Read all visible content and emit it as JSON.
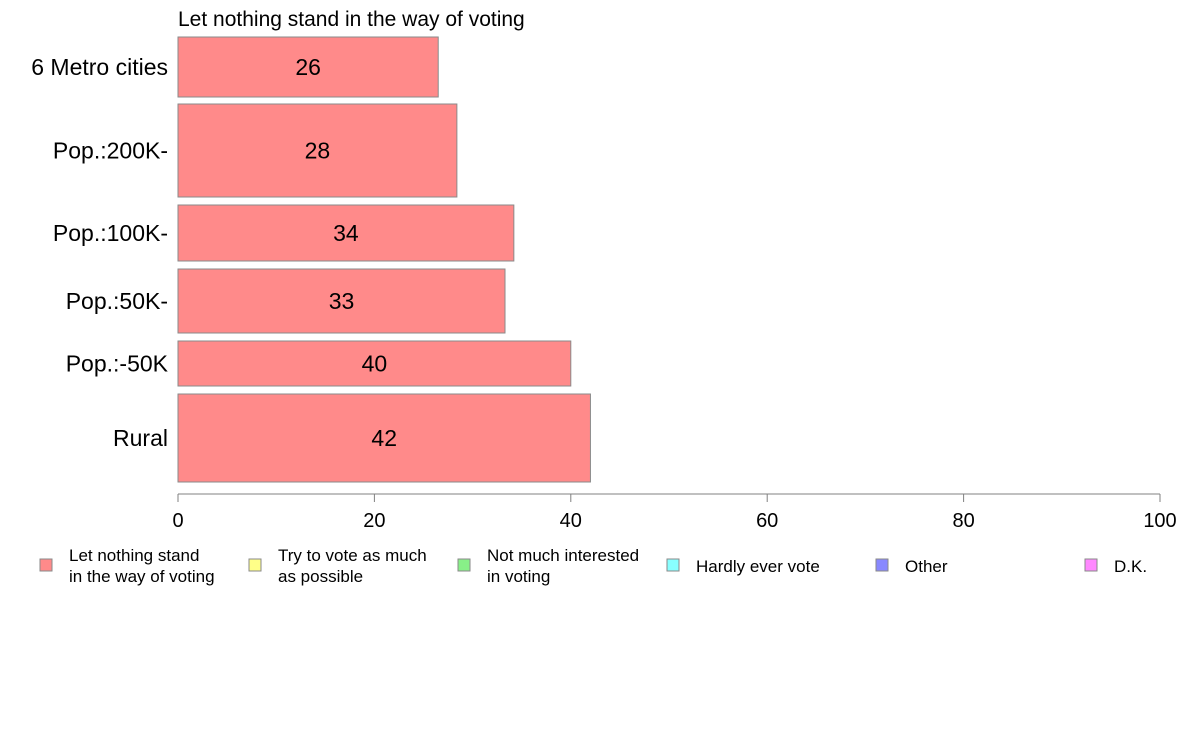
{
  "chart_data": {
    "type": "bar",
    "orientation": "horizontal",
    "title": "Let nothing stand in the way of voting",
    "categories": [
      "6 Metro cities",
      "Pop.:200K-",
      "Pop.:100K-",
      "Pop.:50K-",
      "Pop.:-50K",
      "Rural"
    ],
    "series": [
      {
        "name": "Let nothing stand in the way of voting",
        "color": "#ff8a8a",
        "values": [
          26.5,
          28.4,
          34.2,
          33.3,
          40.0,
          42.0
        ],
        "labels": [
          "26",
          "28",
          "34",
          "33",
          "40",
          "42"
        ]
      }
    ],
    "xlim": [
      0,
      100
    ],
    "xticks": [
      "0",
      "20",
      "40",
      "60",
      "80",
      "100"
    ],
    "grid": false,
    "legend_position": "bottom",
    "legend": [
      {
        "lines": [
          "Let nothing stand",
          "in the way of voting"
        ],
        "color": "#ff8a8a"
      },
      {
        "lines": [
          "Try to vote as much",
          "as possible"
        ],
        "color": "#ffff88"
      },
      {
        "lines": [
          "Not much interested",
          "in voting"
        ],
        "color": "#88f088"
      },
      {
        "lines": [
          "Hardly ever vote"
        ],
        "color": "#88ffff"
      },
      {
        "lines": [
          "Other"
        ],
        "color": "#8888ff"
      },
      {
        "lines": [
          "D.K."
        ],
        "color": "#ff88ff"
      }
    ]
  }
}
